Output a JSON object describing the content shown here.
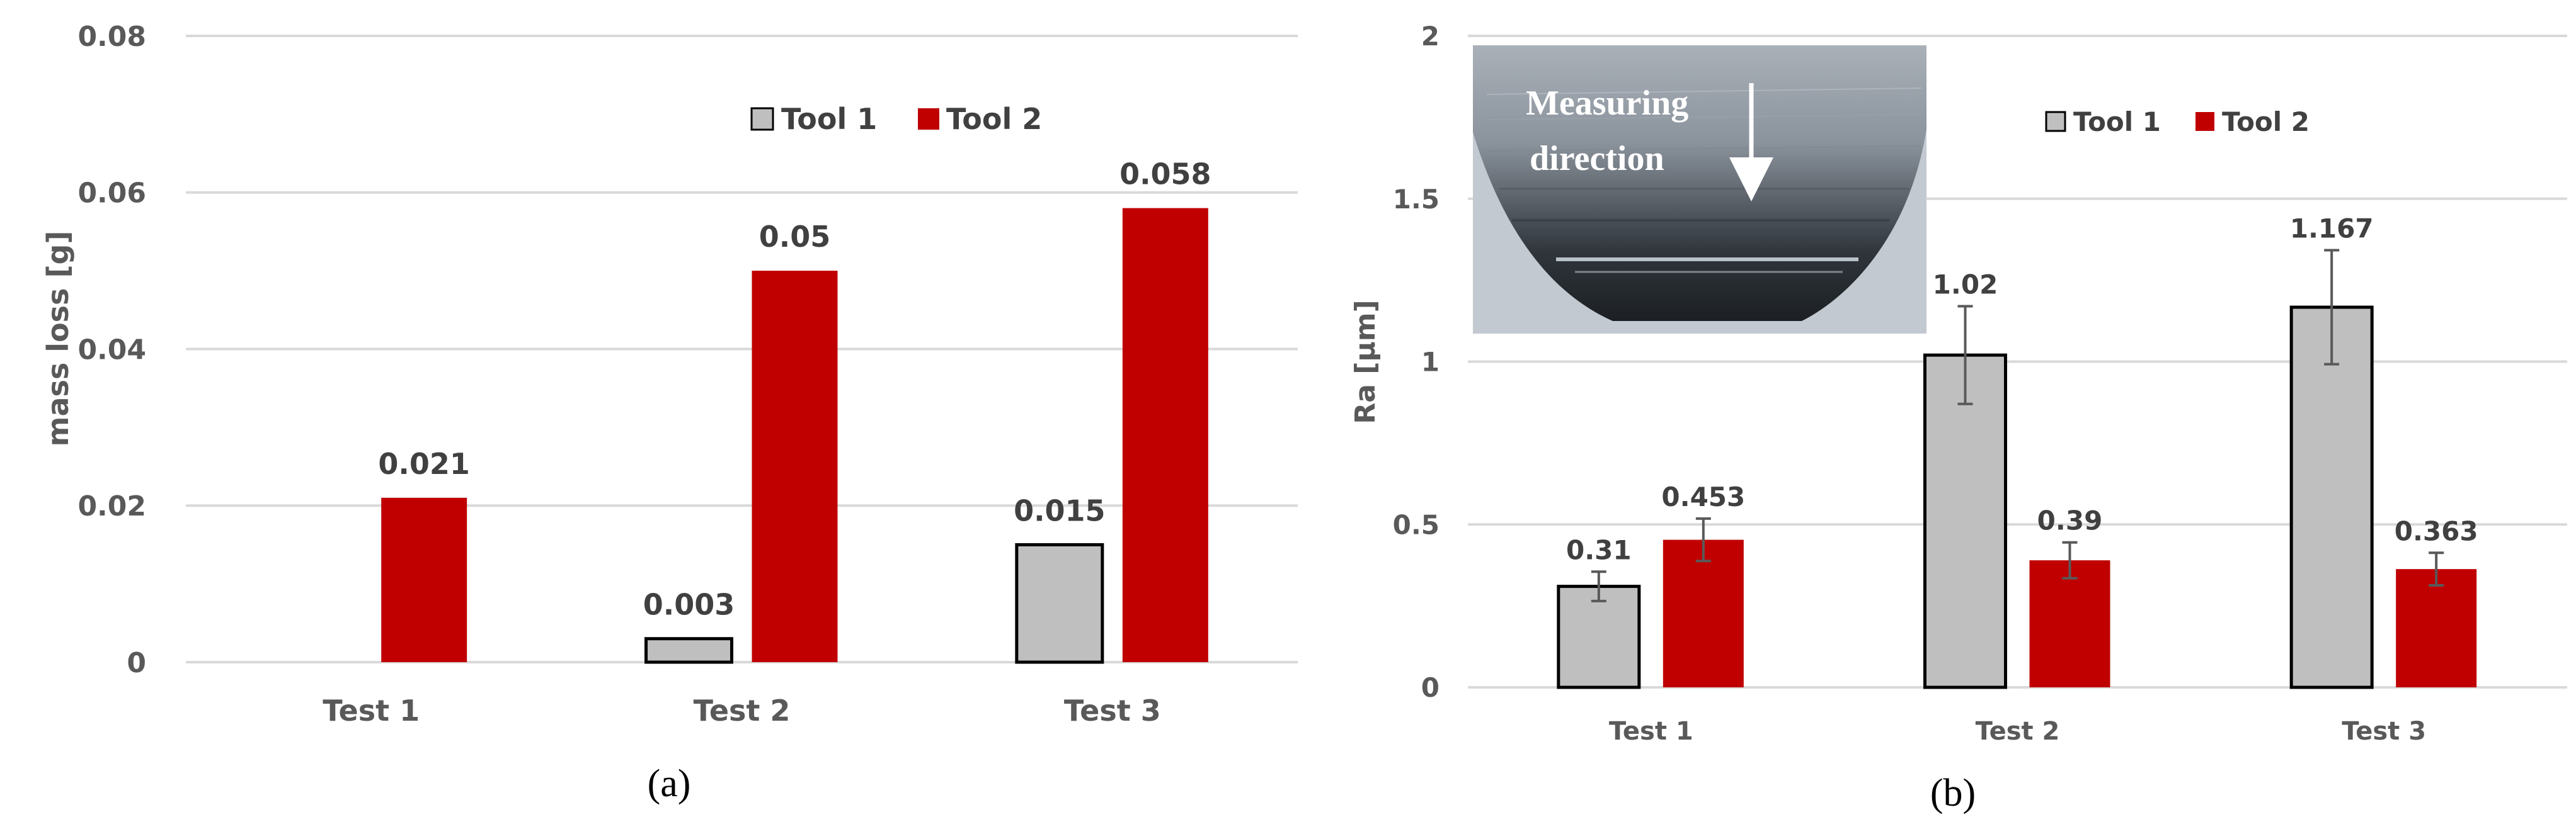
{
  "colors": {
    "tool1": "#bfbfbf",
    "tool2": "#c00000",
    "grid": "#d9d9d9",
    "bar_edge": "#000000"
  },
  "chart_data": [
    {
      "type": "bar",
      "caption": "(a)",
      "ylabel": "mass loss [g]",
      "xlabel": "",
      "categories": [
        "Test 1",
        "Test 2",
        "Test 3"
      ],
      "ylim": [
        0,
        0.08
      ],
      "yticks": [
        "0",
        "0.02",
        "0.04",
        "0.06",
        "0.08"
      ],
      "grid": true,
      "legend_position": "top-right",
      "series": [
        {
          "name": "Tool 1",
          "values": [
            null,
            0.003,
            0.015
          ],
          "labels": [
            "",
            "0.003",
            "0.015"
          ]
        },
        {
          "name": "Tool 2",
          "values": [
            0.021,
            0.05,
            0.058
          ],
          "labels": [
            "0.021",
            "0.05",
            "0.058"
          ]
        }
      ]
    },
    {
      "type": "bar",
      "caption": "(b)",
      "ylabel": "Ra [μm]",
      "xlabel": "",
      "categories": [
        "Test 1",
        "Test 2",
        "Test 3"
      ],
      "ylim": [
        0,
        2
      ],
      "yticks": [
        "0",
        "0.5",
        "1",
        "1.5",
        "2"
      ],
      "grid": true,
      "legend_position": "top-right",
      "error_bars": true,
      "inset_image": {
        "line1": "Measuring",
        "line2": "direction"
      },
      "series": [
        {
          "name": "Tool 1",
          "values": [
            0.31,
            1.02,
            1.167
          ],
          "errors": [
            0.045,
            0.15,
            0.175
          ],
          "labels": [
            "0.31",
            "1.02",
            "1.167"
          ]
        },
        {
          "name": "Tool 2",
          "values": [
            0.453,
            0.39,
            0.363
          ],
          "errors": [
            0.065,
            0.055,
            0.05
          ],
          "labels": [
            "0.453",
            "0.39",
            "0.363"
          ]
        }
      ]
    }
  ]
}
